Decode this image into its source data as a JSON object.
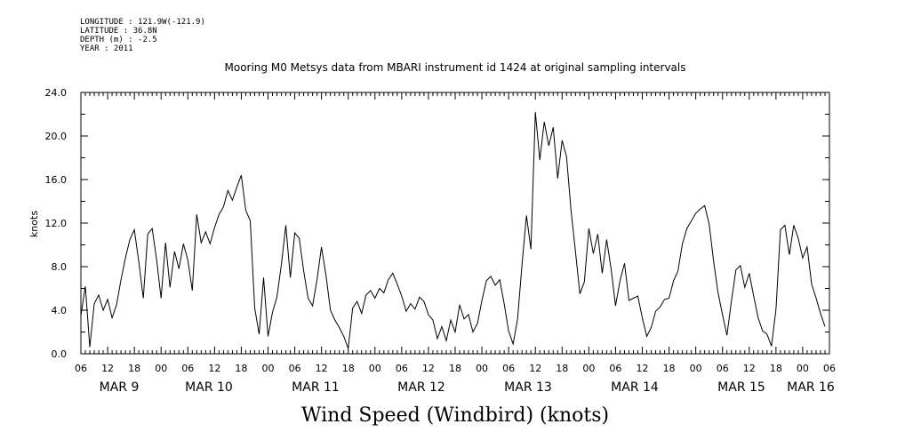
{
  "meta": {
    "longitude": "LONGITUDE : 121.9W(-121.9)",
    "latitude": "LATITUDE : 36.8N",
    "depth": "DEPTH (m) : -2.5",
    "year": "YEAR : 2011"
  },
  "chart_data": {
    "type": "line",
    "title": "Mooring M0 Metsys data from MBARI instrument id 1424 at original sampling intervals",
    "xlabel": "Wind Speed (Windbird) (knots)",
    "ylabel": "knots",
    "xlim": [
      0,
      168
    ],
    "ylim": [
      0,
      24
    ],
    "x_units": "hours after MAR 9 06:00 (2011)",
    "yticks": [
      "0.0",
      "4.0",
      "8.0",
      "12.0",
      "16.0",
      "20.0",
      "24.0"
    ],
    "xticks": [
      "06",
      "12",
      "18",
      "00",
      "06",
      "12",
      "18",
      "00",
      "06",
      "12",
      "18",
      "00",
      "06",
      "12",
      "18",
      "00",
      "06",
      "12",
      "18",
      "00",
      "06",
      "12",
      "18",
      "00",
      "06",
      "12",
      "18",
      "00",
      "06"
    ],
    "day_labels": [
      "MAR  9",
      "MAR 10",
      "MAR 11",
      "MAR 12",
      "MAR 13",
      "MAR 14",
      "MAR 15",
      "MAR 16"
    ],
    "grid": false,
    "series": [
      {
        "values": [
          [
            0,
            3.5
          ],
          [
            1,
            6.2
          ],
          [
            2,
            0.6
          ],
          [
            3,
            4.6
          ],
          [
            4,
            5.4
          ],
          [
            5,
            4.0
          ],
          [
            6,
            5.0
          ],
          [
            7,
            3.3
          ],
          [
            8,
            4.5
          ],
          [
            9,
            6.8
          ],
          [
            10,
            8.8
          ],
          [
            11,
            10.5
          ],
          [
            12,
            11.4
          ],
          [
            13,
            8.4
          ],
          [
            14,
            5.1
          ],
          [
            15,
            11.0
          ],
          [
            16,
            11.5
          ],
          [
            17,
            8.6
          ],
          [
            18,
            5.1
          ],
          [
            19,
            10.2
          ],
          [
            20,
            6.1
          ],
          [
            21,
            9.4
          ],
          [
            22,
            7.8
          ],
          [
            23,
            10.1
          ],
          [
            24,
            8.6
          ],
          [
            25,
            5.8
          ],
          [
            26,
            12.8
          ],
          [
            27,
            10.2
          ],
          [
            28,
            11.2
          ],
          [
            29,
            10.1
          ],
          [
            30,
            11.6
          ],
          [
            31,
            12.8
          ],
          [
            32,
            13.5
          ],
          [
            33,
            15.0
          ],
          [
            34,
            14.1
          ],
          [
            35,
            15.3
          ],
          [
            36,
            16.4
          ],
          [
            37,
            13.2
          ],
          [
            38,
            12.2
          ],
          [
            39,
            4.2
          ],
          [
            40,
            1.8
          ],
          [
            41,
            7.0
          ],
          [
            42,
            1.6
          ],
          [
            43,
            3.8
          ],
          [
            44,
            5.2
          ],
          [
            45,
            8.2
          ],
          [
            46,
            11.8
          ],
          [
            47,
            7.0
          ],
          [
            48,
            11.1
          ],
          [
            49,
            10.6
          ],
          [
            50,
            7.6
          ],
          [
            51,
            5.1
          ],
          [
            52,
            4.4
          ],
          [
            53,
            6.8
          ],
          [
            54,
            9.8
          ],
          [
            55,
            7.2
          ],
          [
            56,
            4.0
          ],
          [
            57,
            3.1
          ],
          [
            58,
            2.4
          ],
          [
            59,
            1.6
          ],
          [
            60,
            0.5
          ],
          [
            61,
            4.2
          ],
          [
            62,
            4.8
          ],
          [
            63,
            3.7
          ],
          [
            64,
            5.4
          ],
          [
            65,
            5.8
          ],
          [
            66,
            5.1
          ],
          [
            67,
            6.0
          ],
          [
            68,
            5.6
          ],
          [
            69,
            6.8
          ],
          [
            70,
            7.4
          ],
          [
            71,
            6.4
          ],
          [
            72,
            5.3
          ],
          [
            73,
            3.9
          ],
          [
            74,
            4.6
          ],
          [
            75,
            4.1
          ],
          [
            76,
            5.2
          ],
          [
            77,
            4.8
          ],
          [
            78,
            3.6
          ],
          [
            79,
            3.1
          ],
          [
            80,
            1.4
          ],
          [
            81,
            2.5
          ],
          [
            82,
            1.2
          ],
          [
            83,
            3.1
          ],
          [
            84,
            2.0
          ],
          [
            85,
            4.5
          ],
          [
            86,
            3.2
          ],
          [
            87,
            3.6
          ],
          [
            88,
            2.0
          ],
          [
            89,
            2.8
          ],
          [
            90,
            4.9
          ],
          [
            91,
            6.7
          ],
          [
            92,
            7.1
          ],
          [
            93,
            6.3
          ],
          [
            94,
            6.8
          ],
          [
            95,
            4.6
          ],
          [
            96,
            2.1
          ],
          [
            97,
            0.9
          ],
          [
            98,
            3.2
          ],
          [
            99,
            8.2
          ],
          [
            100,
            12.7
          ],
          [
            101,
            9.6
          ],
          [
            102,
            22.2
          ],
          [
            103,
            17.8
          ],
          [
            104,
            21.3
          ],
          [
            105,
            19.1
          ],
          [
            106,
            20.8
          ],
          [
            107,
            16.1
          ],
          [
            108,
            19.6
          ],
          [
            109,
            18.1
          ],
          [
            110,
            13.2
          ],
          [
            111,
            9.4
          ],
          [
            112,
            5.5
          ],
          [
            113,
            6.6
          ],
          [
            114,
            11.5
          ],
          [
            115,
            9.2
          ],
          [
            116,
            11.0
          ],
          [
            117,
            7.4
          ],
          [
            118,
            10.5
          ],
          [
            119,
            7.8
          ],
          [
            120,
            4.4
          ],
          [
            121,
            6.7
          ],
          [
            122,
            8.3
          ],
          [
            123,
            4.9
          ],
          [
            124,
            5.1
          ],
          [
            125,
            5.3
          ],
          [
            126,
            3.3
          ],
          [
            127,
            1.6
          ],
          [
            128,
            2.4
          ],
          [
            129,
            3.9
          ],
          [
            130,
            4.3
          ],
          [
            131,
            5.0
          ],
          [
            132,
            5.1
          ],
          [
            133,
            6.7
          ],
          [
            134,
            7.6
          ],
          [
            135,
            10.1
          ],
          [
            136,
            11.5
          ],
          [
            137,
            12.2
          ],
          [
            138,
            12.9
          ],
          [
            139,
            13.3
          ],
          [
            140,
            13.6
          ],
          [
            141,
            11.9
          ],
          [
            142,
            8.5
          ],
          [
            143,
            5.6
          ],
          [
            144,
            3.6
          ],
          [
            145,
            1.7
          ],
          [
            146,
            4.8
          ],
          [
            147,
            7.7
          ],
          [
            148,
            8.1
          ],
          [
            149,
            6.1
          ],
          [
            150,
            7.4
          ],
          [
            151,
            5.3
          ],
          [
            152,
            3.3
          ],
          [
            153,
            2.1
          ],
          [
            154,
            1.8
          ],
          [
            155,
            0.7
          ],
          [
            156,
            4.1
          ],
          [
            157,
            11.4
          ],
          [
            158,
            11.8
          ],
          [
            159,
            9.1
          ],
          [
            160,
            11.8
          ],
          [
            161,
            10.6
          ],
          [
            162,
            8.8
          ],
          [
            163,
            9.8
          ],
          [
            164,
            6.4
          ],
          [
            165,
            5.1
          ],
          [
            166,
            3.7
          ],
          [
            167,
            2.5
          ]
        ]
      }
    ]
  }
}
